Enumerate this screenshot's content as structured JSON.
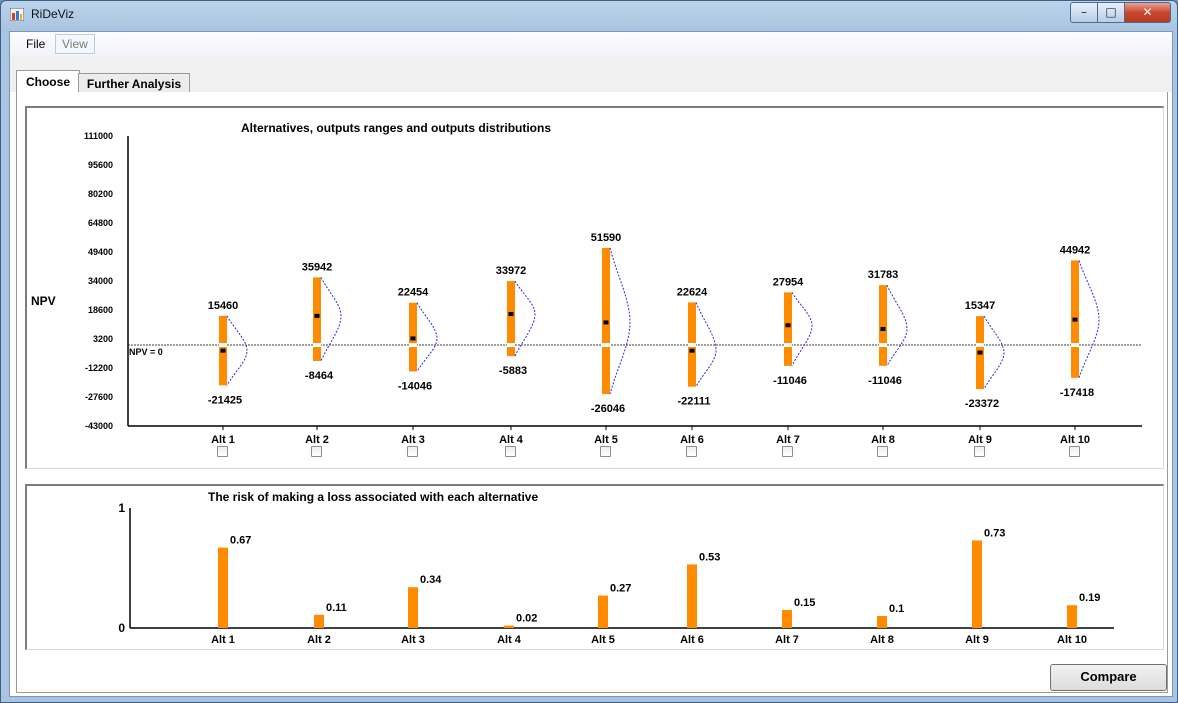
{
  "window": {
    "title": "RiDeViz",
    "minimize": "–",
    "maximize": "□",
    "close": "✕"
  },
  "menu": {
    "file": "File",
    "view": "View"
  },
  "tabs": {
    "choose": "Choose",
    "further": "Further Analysis"
  },
  "compare_label": "Compare",
  "chart_data": [
    {
      "type": "range",
      "title": "Alternatives, outputs ranges and outputs distributions",
      "ylabel": "NPV",
      "ylim": [
        -43000,
        111000
      ],
      "yticks": [
        111000,
        95600,
        80200,
        64800,
        49400,
        34000,
        18600,
        3200,
        -12200,
        -27600,
        -43000
      ],
      "reference_label": "NPV = 0",
      "categories": [
        "Alt 1",
        "Alt 2",
        "Alt 3",
        "Alt 4",
        "Alt 5",
        "Alt 6",
        "Alt 7",
        "Alt 8",
        "Alt 9",
        "Alt 10"
      ],
      "max": [
        15460,
        35942,
        22454,
        33972,
        51590,
        22624,
        27954,
        31783,
        15347,
        44942
      ],
      "min": [
        -21425,
        -8464,
        -14046,
        -5883,
        -26046,
        -22111,
        -11046,
        -11046,
        -23372,
        -17418
      ],
      "mean": [
        -3000,
        15500,
        3500,
        16500,
        12000,
        -3000,
        10500,
        8500,
        -4000,
        13500
      ],
      "grid": false,
      "bar_color": "#ff8c00",
      "curve_color": "#2a2af0"
    },
    {
      "type": "bar",
      "title": "The risk of making a loss associated with each alternative",
      "ylim": [
        0,
        1
      ],
      "yticks": [
        0,
        1
      ],
      "categories": [
        "Alt 1",
        "Alt 2",
        "Alt 3",
        "Alt 4",
        "Alt 5",
        "Alt 6",
        "Alt 7",
        "Alt 8",
        "Alt 9",
        "Alt 10"
      ],
      "values": [
        0.67,
        0.11,
        0.34,
        0.02,
        0.27,
        0.53,
        0.15,
        0.1,
        0.73,
        0.19
      ],
      "grid": false,
      "bar_color": "#ff8c00"
    }
  ]
}
